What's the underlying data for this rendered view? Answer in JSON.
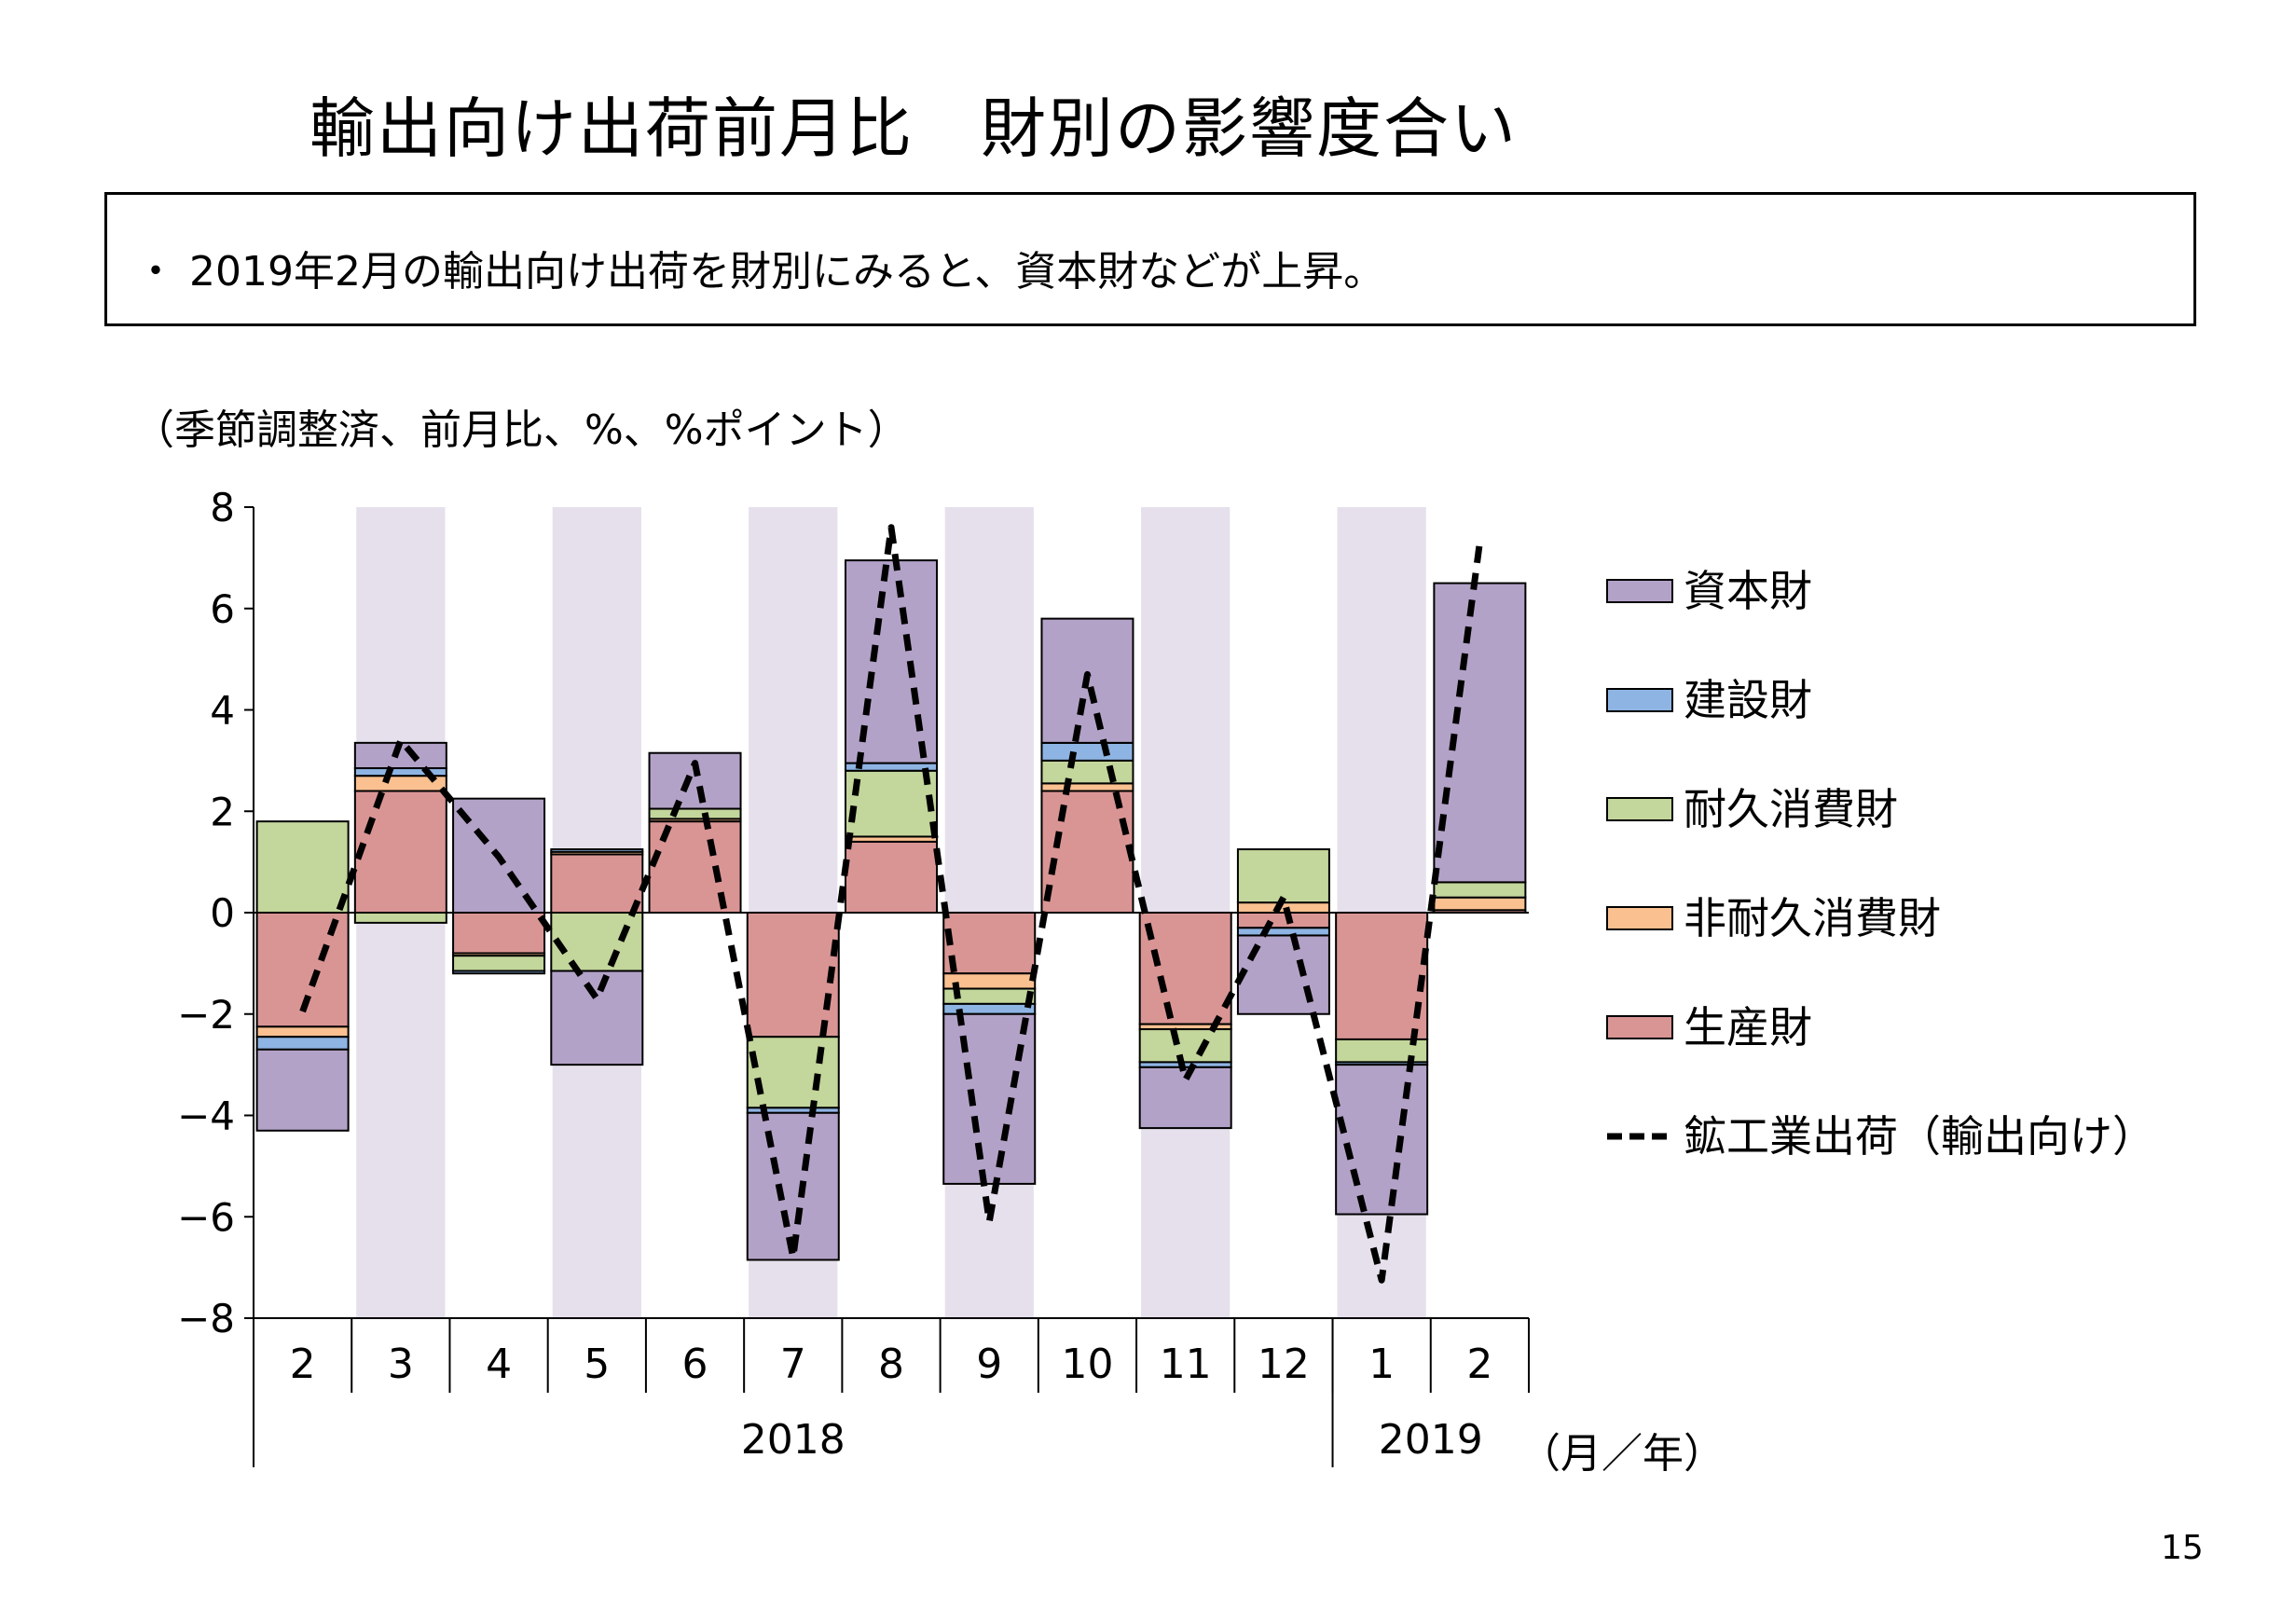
{
  "title": "輸出向け出荷前月比　財別の影響度合い",
  "summary": "・ 2019年2月の輸出向け出荷を財別にみると、資本財などが上昇。",
  "unit_note": "（季節調整済、前月比、%、%ポイント）",
  "page_number": "15",
  "colors": {
    "shade": "#e6e0ec",
    "capital": "#b3a2c7",
    "construction": "#8eb4e3",
    "durable": "#c3d69b",
    "nondurable": "#fac090",
    "production": "#d99594",
    "line": "#000000"
  },
  "chart_data": {
    "type": "bar",
    "stacked": true,
    "categories": [
      "2",
      "3",
      "4",
      "5",
      "6",
      "7",
      "8",
      "9",
      "10",
      "11",
      "12",
      "1",
      "2"
    ],
    "year_labels": [
      {
        "label": "2018",
        "from": 0,
        "to": 10
      },
      {
        "label": "2019",
        "from": 11,
        "to": 12
      }
    ],
    "x_unit": "（月／年）",
    "ylim": [
      -8,
      8
    ],
    "yticks": [
      8,
      6,
      4,
      2,
      0,
      -2,
      -4,
      -6,
      -8
    ],
    "shaded_categories": [
      1,
      3,
      5,
      7,
      9,
      11
    ],
    "series": [
      {
        "name": "生産財",
        "key": "production",
        "values": [
          -2.25,
          2.4,
          -0.8,
          1.15,
          1.8,
          -2.45,
          1.4,
          -1.2,
          2.4,
          -2.2,
          -0.3,
          -2.5,
          0.05
        ]
      },
      {
        "name": "非耐久消費財",
        "key": "nondurable",
        "values": [
          -0.2,
          0.3,
          -0.05,
          0.05,
          0.05,
          0.0,
          0.1,
          -0.3,
          0.15,
          -0.1,
          0.2,
          0.0,
          0.25
        ]
      },
      {
        "name": "耐久消費財",
        "key": "durable",
        "values": [
          1.8,
          -0.2,
          -0.3,
          -1.15,
          0.2,
          -1.4,
          1.3,
          -0.3,
          0.45,
          -0.65,
          1.05,
          -0.45,
          0.3
        ]
      },
      {
        "name": "建設財",
        "key": "construction",
        "values": [
          -0.25,
          0.15,
          -0.05,
          0.05,
          0.0,
          -0.1,
          0.15,
          -0.2,
          0.35,
          -0.1,
          -0.15,
          -0.05,
          0.0
        ]
      },
      {
        "name": "資本財",
        "key": "capital",
        "values": [
          -1.6,
          0.5,
          2.25,
          -1.85,
          1.1,
          -2.9,
          4.0,
          -3.35,
          2.45,
          -1.2,
          -1.55,
          -2.95,
          5.9
        ]
      }
    ],
    "line_series": {
      "name": "鉱工業出荷（輸出向け）",
      "values": [
        -1.95,
        3.4,
        1.1,
        -1.7,
        2.95,
        -6.8,
        7.6,
        -6.1,
        4.7,
        -3.3,
        0.3,
        -7.25,
        7.3
      ]
    }
  }
}
